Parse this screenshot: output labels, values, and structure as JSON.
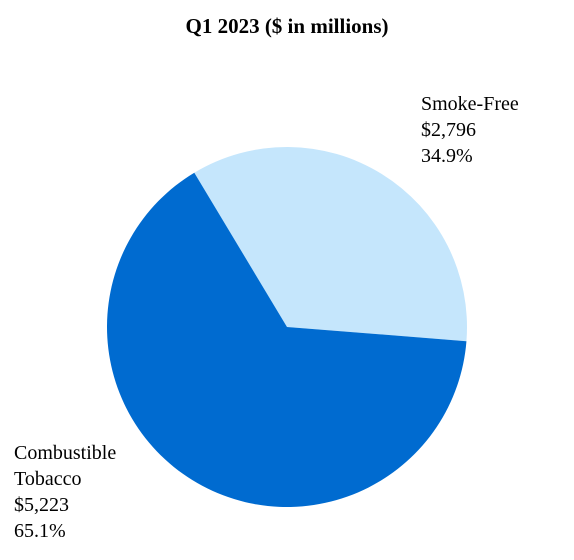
{
  "chart_data": {
    "type": "pie",
    "title": "Q1 2023 ($ in millions)",
    "slices": [
      {
        "name_lines": [
          "Smoke-Free"
        ],
        "value": 2796,
        "value_label": "$2,796",
        "percent": 34.9,
        "percent_label": "34.9%",
        "color": "#c5e6fc"
      },
      {
        "name_lines": [
          "Combustible",
          "Tobacco"
        ],
        "value": 5223,
        "value_label": "$5,223",
        "percent": 65.1,
        "percent_label": "65.1%",
        "color": "#006bd0"
      }
    ],
    "legend": "none"
  }
}
